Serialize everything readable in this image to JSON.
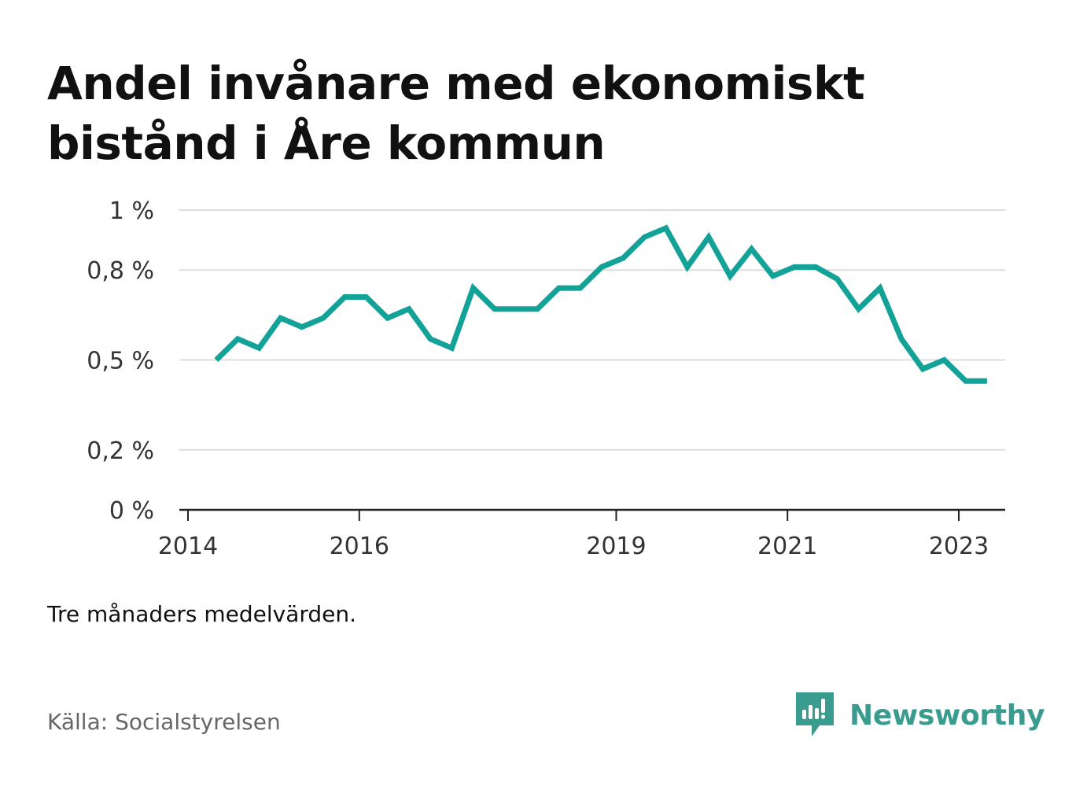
{
  "title": "Andel invånare med ekonomiskt bistånd i Åre kommun",
  "note": "Tre månaders medelvärden.",
  "source": "Källa: Socialstyrelsen",
  "brand": {
    "name": "Newsworthy",
    "icon": "newsworthy-logo-icon",
    "color": "#3a9b8f"
  },
  "colors": {
    "line": "#13a297",
    "grid": "#dddddd",
    "axis": "#222222"
  },
  "chart_data": {
    "type": "line",
    "title": "Andel invånare med ekonomiskt bistånd i Åre kommun",
    "xlabel": "",
    "ylabel": "",
    "ylim": [
      0,
      1
    ],
    "yticks": [
      {
        "value": 0,
        "label": "0 %"
      },
      {
        "value": 0.2,
        "label": "0,2 %"
      },
      {
        "value": 0.5,
        "label": "0,5 %"
      },
      {
        "value": 0.8,
        "label": "0,8 %"
      },
      {
        "value": 1.0,
        "label": "1 %"
      }
    ],
    "xlim": [
      2014.0,
      2023.6
    ],
    "xticks": [
      {
        "value": 2014,
        "label": "2014"
      },
      {
        "value": 2016,
        "label": "2016"
      },
      {
        "value": 2019,
        "label": "2019"
      },
      {
        "value": 2021,
        "label": "2021"
      },
      {
        "value": 2023,
        "label": "2023"
      }
    ],
    "grid": true,
    "series": [
      {
        "name": "",
        "x": [
          2014.33,
          2014.58,
          2014.83,
          2015.08,
          2015.33,
          2015.58,
          2015.83,
          2016.08,
          2016.33,
          2016.58,
          2016.83,
          2017.08,
          2017.33,
          2017.58,
          2017.83,
          2018.08,
          2018.33,
          2018.58,
          2018.83,
          2019.08,
          2019.33,
          2019.58,
          2019.83,
          2020.08,
          2020.33,
          2020.58,
          2020.83,
          2021.08,
          2021.33,
          2021.58,
          2021.83,
          2022.08,
          2022.33,
          2022.58,
          2022.83,
          2023.08,
          2023.33
        ],
        "values": [
          0.5,
          0.57,
          0.54,
          0.64,
          0.61,
          0.64,
          0.71,
          0.71,
          0.64,
          0.67,
          0.57,
          0.54,
          0.74,
          0.67,
          0.67,
          0.67,
          0.74,
          0.74,
          0.81,
          0.84,
          0.91,
          0.94,
          0.81,
          0.91,
          0.78,
          0.87,
          0.78,
          0.81,
          0.81,
          0.77,
          0.67,
          0.74,
          0.57,
          0.47,
          0.5,
          0.43,
          0.43
        ]
      }
    ]
  }
}
